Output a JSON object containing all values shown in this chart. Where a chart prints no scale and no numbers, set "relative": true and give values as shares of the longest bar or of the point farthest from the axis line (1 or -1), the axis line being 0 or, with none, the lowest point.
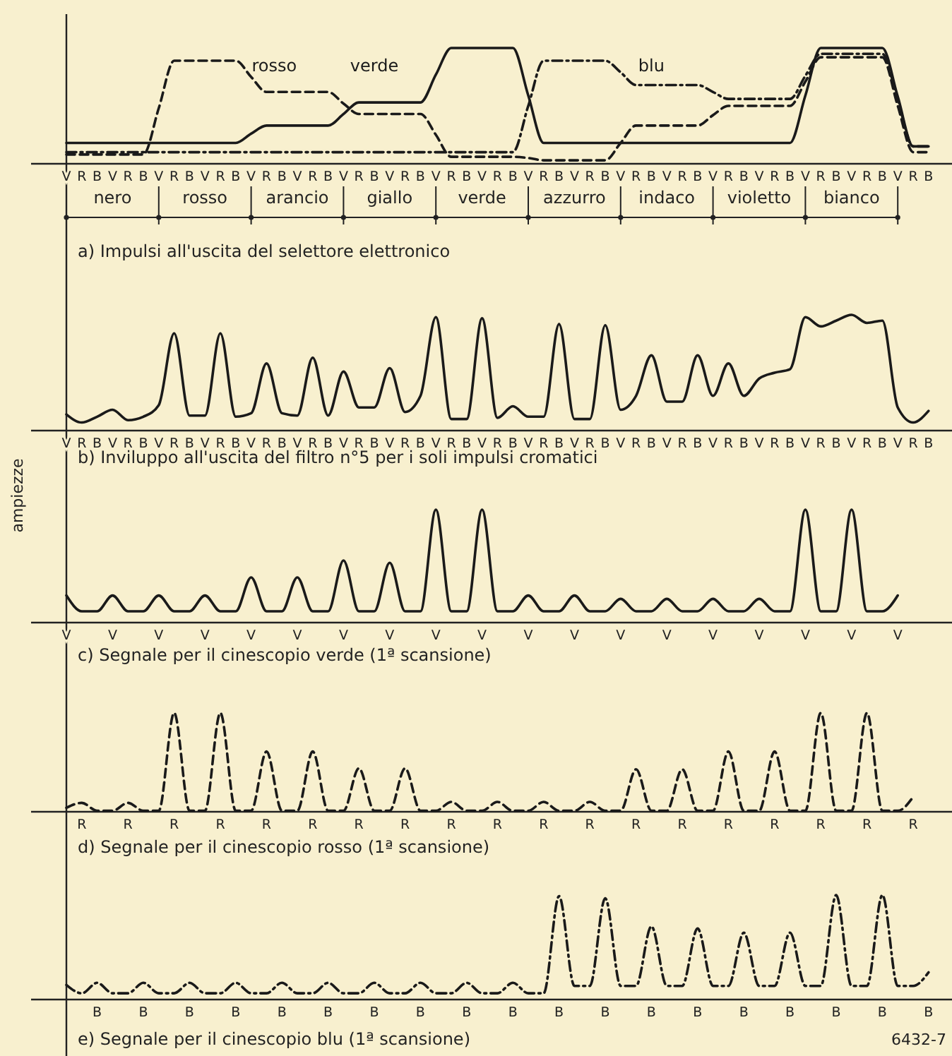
{
  "chart_data": [
    {
      "type": "line",
      "relative": true,
      "title": "a) Impulsi all'uscita del selettore elettronico",
      "categories": [
        "V",
        "R",
        "B",
        "V",
        "R",
        "B",
        "V",
        "R",
        "B",
        "V",
        "R",
        "B",
        "V",
        "R",
        "B",
        "V",
        "R",
        "B",
        "V",
        "R",
        "B",
        "V",
        "R",
        "B",
        "V",
        "R",
        "B",
        "V",
        "R",
        "B",
        "V",
        "R",
        "B",
        "V",
        "R",
        "B",
        "V",
        "R",
        "B",
        "V",
        "R",
        "B",
        "V",
        "R",
        "B",
        "V",
        "R",
        "B",
        "V",
        "R",
        "B",
        "V",
        "R",
        "B",
        "V",
        "R",
        "B"
      ],
      "annotations": [
        "nero",
        "rosso",
        "arancio",
        "giallo",
        "verde",
        "azzurro",
        "indaco",
        "violetto",
        "bianco"
      ],
      "series": [
        {
          "name": "rosso",
          "color": "#1a1a1a",
          "line_style": "dashed",
          "values": [
            0.08,
            0.08,
            0.08,
            0.08,
            0.08,
            0.08,
            0.48,
            0.89,
            0.89,
            0.89,
            0.89,
            0.89,
            0.75,
            0.62,
            0.62,
            0.62,
            0.62,
            0.62,
            0.52,
            0.43,
            0.43,
            0.43,
            0.43,
            0.43,
            0.25,
            0.06,
            0.06,
            0.06,
            0.06,
            0.06,
            0.05,
            0.03,
            0.03,
            0.03,
            0.03,
            0.03,
            0.18,
            0.33,
            0.33,
            0.33,
            0.33,
            0.33,
            0.42,
            0.5,
            0.5,
            0.5,
            0.5,
            0.5,
            0.71,
            0.92,
            0.92,
            0.92,
            0.92,
            0.92,
            0.5,
            0.1,
            0.1
          ]
        },
        {
          "name": "verde",
          "color": "#1a1a1a",
          "line_style": "solid",
          "values": [
            0.18,
            0.18,
            0.18,
            0.18,
            0.18,
            0.18,
            0.18,
            0.18,
            0.18,
            0.18,
            0.18,
            0.18,
            0.26,
            0.33,
            0.33,
            0.33,
            0.33,
            0.33,
            0.43,
            0.53,
            0.53,
            0.53,
            0.53,
            0.53,
            0.77,
            1,
            1,
            1,
            1,
            1,
            0.59,
            0.18,
            0.18,
            0.18,
            0.18,
            0.18,
            0.18,
            0.18,
            0.18,
            0.18,
            0.18,
            0.18,
            0.18,
            0.18,
            0.18,
            0.18,
            0.18,
            0.18,
            0.59,
            1,
            1,
            1,
            1,
            1,
            0.58,
            0.15,
            0.15
          ]
        },
        {
          "name": "blu",
          "color": "#1a1a1a",
          "line_style": "dotted",
          "values": [
            0.1,
            0.1,
            0.1,
            0.1,
            0.1,
            0.1,
            0.1,
            0.1,
            0.1,
            0.1,
            0.1,
            0.1,
            0.1,
            0.1,
            0.1,
            0.1,
            0.1,
            0.1,
            0.1,
            0.1,
            0.1,
            0.1,
            0.1,
            0.1,
            0.1,
            0.1,
            0.1,
            0.1,
            0.1,
            0.1,
            0.5,
            0.89,
            0.89,
            0.89,
            0.89,
            0.89,
            0.79,
            0.68,
            0.68,
            0.68,
            0.68,
            0.68,
            0.62,
            0.56,
            0.56,
            0.56,
            0.56,
            0.56,
            0.76,
            0.95,
            0.95,
            0.95,
            0.95,
            0.95,
            0.55,
            0.15,
            0.15
          ]
        }
      ]
    },
    {
      "type": "line",
      "relative": true,
      "title": "b) Inviluppo all'uscita del filtro n°5 per i soli impulsi cromatici",
      "categories": [
        "V",
        "R",
        "B",
        "V",
        "R",
        "B",
        "V",
        "R",
        "B",
        "V",
        "R",
        "B",
        "V",
        "R",
        "B",
        "V",
        "R",
        "B",
        "V",
        "R",
        "B",
        "V",
        "R",
        "B",
        "V",
        "R",
        "B",
        "V",
        "R",
        "B",
        "V",
        "R",
        "B",
        "V",
        "R",
        "B",
        "V",
        "R",
        "B",
        "V",
        "R",
        "B",
        "V",
        "R",
        "B",
        "V",
        "R",
        "B",
        "V",
        "R",
        "B",
        "V",
        "R",
        "B",
        "V",
        "R",
        "B"
      ],
      "series": [
        {
          "color": "#1a1a1a",
          "line_style": "solid",
          "values": [
            0.14,
            0.07,
            0.12,
            0.18,
            0.09,
            0.12,
            0.22,
            0.84,
            0.13,
            0.13,
            0.84,
            0.12,
            0.15,
            0.58,
            0.15,
            0.13,
            0.63,
            0.13,
            0.51,
            0.2,
            0.2,
            0.54,
            0.16,
            0.3,
            0.98,
            0.1,
            0.1,
            0.97,
            0.11,
            0.21,
            0.12,
            0.12,
            0.92,
            0.1,
            0.1,
            0.91,
            0.18,
            0.3,
            0.65,
            0.25,
            0.25,
            0.65,
            0.3,
            0.58,
            0.3,
            0.45,
            0.5,
            0.53,
            0.98,
            0.9,
            0.95,
            1,
            0.93,
            0.95,
            0.2,
            0.07,
            0.17
          ]
        }
      ]
    },
    {
      "type": "line",
      "relative": true,
      "title": "c) Segnale per il cinescopio verde (1ª scansione)",
      "ylabel": "ampiezze",
      "categories": [
        "V",
        null,
        null,
        "V",
        null,
        null,
        "V",
        null,
        null,
        "V",
        null,
        null,
        "V",
        null,
        null,
        "V",
        null,
        null,
        "V",
        null,
        null,
        "V",
        null,
        null,
        "V",
        null,
        null,
        "V",
        null,
        null,
        "V",
        null,
        null,
        "V",
        null,
        null,
        "V",
        null,
        null,
        "V",
        null,
        null,
        "V",
        null,
        null,
        "V",
        null,
        null,
        "V",
        null,
        null,
        "V",
        null,
        null,
        "V",
        null,
        null
      ],
      "series": [
        {
          "color": "#1a1a1a",
          "line_style": "solid",
          "values": [
            0.24,
            0.1,
            0.1,
            0.24,
            0.1,
            0.1,
            0.24,
            0.1,
            0.1,
            0.24,
            0.1,
            0.1,
            0.4,
            0.1,
            0.1,
            0.4,
            0.1,
            0.1,
            0.55,
            0.1,
            0.1,
            0.53,
            0.1,
            0.1,
            1,
            0.1,
            0.1,
            1,
            0.1,
            0.1,
            0.24,
            0.1,
            0.1,
            0.24,
            0.1,
            0.1,
            0.21,
            0.1,
            0.1,
            0.21,
            0.1,
            0.1,
            0.21,
            0.1,
            0.1,
            0.21,
            0.1,
            0.1,
            1,
            0.1,
            0.1,
            1,
            0.1,
            0.1,
            0.24,
            null,
            null
          ]
        }
      ]
    },
    {
      "type": "line",
      "relative": true,
      "title": "d) Segnale per il cinescopio rosso (1ª scansione)",
      "categories": [
        null,
        "R",
        null,
        null,
        "R",
        null,
        null,
        "R",
        null,
        null,
        "R",
        null,
        null,
        "R",
        null,
        null,
        "R",
        null,
        null,
        "R",
        null,
        null,
        "R",
        null,
        null,
        "R",
        null,
        null,
        "R",
        null,
        null,
        "R",
        null,
        null,
        "R",
        null,
        null,
        "R",
        null,
        null,
        "R",
        null,
        null,
        "R",
        null,
        null,
        "R",
        null,
        null,
        "R",
        null,
        null,
        "R",
        null,
        null,
        "R",
        null
      ],
      "series": [
        {
          "color": "#1a1a1a",
          "line_style": "dashed",
          "values": [
            0.04,
            0.09,
            0.01,
            0.01,
            0.09,
            0.01,
            0.01,
            1,
            0.01,
            0.01,
            1,
            0.01,
            0.01,
            0.61,
            0.01,
            0.01,
            0.61,
            0.01,
            0.01,
            0.44,
            0.01,
            0.01,
            0.44,
            0.01,
            0.01,
            0.1,
            0.01,
            0.01,
            0.1,
            0.01,
            0.01,
            0.1,
            0.01,
            0.01,
            0.1,
            0.01,
            0.01,
            0.43,
            0.01,
            0.01,
            0.43,
            0.01,
            0.01,
            0.61,
            0.01,
            0.01,
            0.61,
            0.01,
            0.01,
            1,
            0.01,
            0.01,
            1,
            0.01,
            0.01,
            0.15,
            null
          ]
        }
      ]
    },
    {
      "type": "line",
      "relative": true,
      "title": "e) Segnale per il cinescopio blu (1ª scansione)",
      "categories": [
        null,
        null,
        "B",
        null,
        null,
        "B",
        null,
        null,
        "B",
        null,
        null,
        "B",
        null,
        null,
        "B",
        null,
        null,
        "B",
        null,
        null,
        "B",
        null,
        null,
        "B",
        null,
        null,
        "B",
        null,
        null,
        "B",
        null,
        null,
        "B",
        null,
        null,
        "B",
        null,
        null,
        "B",
        null,
        null,
        "B",
        null,
        null,
        "B",
        null,
        null,
        "B",
        null,
        null,
        "B",
        null,
        null,
        "B",
        null,
        null,
        "B"
      ],
      "annotations": [
        "6432-7"
      ],
      "series": [
        {
          "color": "#1a1a1a",
          "line_style": "dotted",
          "values": [
            0.14,
            0.06,
            0.16,
            0.06,
            0.06,
            0.16,
            0.06,
            0.06,
            0.16,
            0.06,
            0.06,
            0.16,
            0.06,
            0.06,
            0.16,
            0.06,
            0.06,
            0.16,
            0.06,
            0.06,
            0.16,
            0.06,
            0.06,
            0.16,
            0.06,
            0.06,
            0.16,
            0.06,
            0.06,
            0.16,
            0.06,
            0.06,
            0.99,
            0.13,
            0.13,
            0.97,
            0.13,
            0.13,
            0.7,
            0.13,
            0.13,
            0.68,
            0.13,
            0.13,
            0.64,
            0.13,
            0.13,
            0.64,
            0.13,
            0.13,
            1,
            0.13,
            0.13,
            1,
            0.13,
            0.13,
            0.26
          ]
        }
      ]
    }
  ]
}
